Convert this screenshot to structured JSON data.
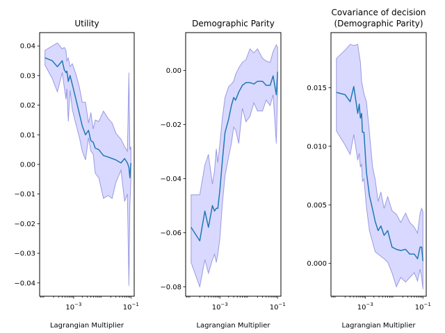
{
  "chart_data": [
    {
      "type": "line",
      "title": "Utility",
      "xlabel": "Lagrangian Multiplier",
      "xscale": "log",
      "xlim": [
        6.5e-05,
        0.13
      ],
      "ylim": [
        -0.0445,
        0.0445
      ],
      "xticks": [
        {
          "value": 0.001,
          "base": "10",
          "exp": "−3"
        },
        {
          "value": 0.1,
          "base": "10",
          "exp": "−1"
        }
      ],
      "yticks": [
        {
          "value": 0.04,
          "label": "0.04"
        },
        {
          "value": 0.03,
          "label": "0.03"
        },
        {
          "value": 0.02,
          "label": "0.02"
        },
        {
          "value": 0.01,
          "label": "0.01"
        },
        {
          "value": 0.0,
          "label": "0.00"
        },
        {
          "value": -0.01,
          "label": "−0.01"
        },
        {
          "value": -0.02,
          "label": "−0.02"
        },
        {
          "value": -0.03,
          "label": "−0.03"
        },
        {
          "value": -0.04,
          "label": "−0.04"
        }
      ],
      "series": [
        {
          "x": [
            0.0001,
            0.00018,
            0.00027,
            0.0004,
            0.00047,
            0.00054,
            0.00058,
            0.00065,
            0.00075,
            0.0009,
            0.0012,
            0.0016,
            0.002,
            0.0026,
            0.0033,
            0.004,
            0.0048,
            0.0057,
            0.0075,
            0.011,
            0.016,
            0.022,
            0.03,
            0.045,
            0.06,
            0.075,
            0.085,
            0.092,
            0.1
          ],
          "y": [
            0.036,
            0.035,
            0.033,
            0.035,
            0.032,
            0.031,
            0.0315,
            0.028,
            0.03,
            0.027,
            0.022,
            0.017,
            0.013,
            0.01,
            0.0115,
            0.008,
            0.0075,
            0.0055,
            0.005,
            0.003,
            0.0025,
            0.002,
            0.0015,
            0.0005,
            0.002,
            0.0005,
            -0.001,
            -0.0045,
            0.0005
          ],
          "upper": [
            0.0385,
            0.04,
            0.041,
            0.039,
            0.0395,
            0.0385,
            0.035,
            0.036,
            0.033,
            0.034,
            0.0305,
            0.026,
            0.021,
            0.021,
            0.014,
            0.0175,
            0.012,
            0.015,
            0.0145,
            0.018,
            0.0155,
            0.014,
            0.0105,
            0.0085,
            0.006,
            0.0045,
            0.031,
            0.005,
            0.006
          ],
          "lower": [
            0.0335,
            0.029,
            0.0245,
            0.031,
            0.026,
            0.022,
            0.0255,
            0.0145,
            0.025,
            0.0185,
            0.0135,
            0.009,
            0.0045,
            0.0015,
            0.009,
            0.0045,
            0.0035,
            -0.003,
            -0.0045,
            -0.0115,
            -0.0105,
            -0.0115,
            -0.006,
            -0.002,
            -0.0125,
            -0.01,
            -0.041,
            -0.014,
            -0.005
          ]
        }
      ]
    },
    {
      "type": "line",
      "title": "Demographic Parity",
      "xlabel": "Lagrangian Multiplier",
      "xscale": "log",
      "xlim": [
        6.5e-05,
        0.13
      ],
      "ylim": [
        -0.0835,
        0.014
      ],
      "xticks": [
        {
          "value": 0.001,
          "base": "10",
          "exp": "−3"
        },
        {
          "value": 0.1,
          "base": "10",
          "exp": "−1"
        }
      ],
      "yticks": [
        {
          "value": 0.0,
          "label": "0.00"
        },
        {
          "value": -0.02,
          "label": "−0.02"
        },
        {
          "value": -0.04,
          "label": "−0.04"
        },
        {
          "value": -0.06,
          "label": "−0.06"
        },
        {
          "value": -0.08,
          "label": "−0.08"
        }
      ],
      "series": [
        {
          "x": [
            0.0001,
            0.0002,
            0.0003,
            0.0004,
            0.00055,
            0.00065,
            0.00075,
            0.00085,
            0.001,
            0.0012,
            0.0015,
            0.002,
            0.0025,
            0.003,
            0.0035,
            0.0045,
            0.006,
            0.008,
            0.011,
            0.015,
            0.02,
            0.03,
            0.04,
            0.055,
            0.07,
            0.09,
            0.1
          ],
          "y": [
            -0.058,
            -0.063,
            -0.052,
            -0.058,
            -0.05,
            -0.052,
            -0.051,
            -0.051,
            -0.044,
            -0.034,
            -0.023,
            -0.018,
            -0.013,
            -0.01,
            -0.011,
            -0.008,
            -0.0055,
            -0.0045,
            -0.0045,
            -0.005,
            -0.004,
            -0.004,
            -0.0055,
            -0.0055,
            -0.002,
            -0.009,
            -0.0005
          ],
          "upper": [
            -0.046,
            -0.046,
            -0.035,
            -0.031,
            -0.042,
            -0.037,
            -0.029,
            -0.034,
            -0.027,
            -0.018,
            -0.01,
            -0.006,
            -0.005,
            -0.004,
            -0.0015,
            0.001,
            0.003,
            0.004,
            0.008,
            0.0065,
            0.008,
            0.0045,
            0.0035,
            0.003,
            0.007,
            0.0095,
            0.0085
          ],
          "lower": [
            -0.071,
            -0.08,
            -0.07,
            -0.075,
            -0.07,
            -0.068,
            -0.071,
            -0.068,
            -0.062,
            -0.05,
            -0.039,
            -0.032,
            -0.027,
            -0.021,
            -0.022,
            -0.027,
            -0.014,
            -0.019,
            -0.017,
            -0.012,
            -0.015,
            -0.015,
            -0.011,
            -0.013,
            -0.009,
            -0.027,
            -0.0085
          ]
        }
      ]
    },
    {
      "type": "line",
      "title": "Covariance of decision\n(Demographic Parity)",
      "xlabel": "Lagrangian Multiplier",
      "xscale": "log",
      "xlim": [
        6.5e-05,
        0.13
      ],
      "ylim": [
        -0.0028,
        0.0197
      ],
      "xticks": [
        {
          "value": 0.001,
          "base": "10",
          "exp": "−3"
        },
        {
          "value": 0.1,
          "base": "10",
          "exp": "−1"
        }
      ],
      "yticks": [
        {
          "value": 0.015,
          "label": "0.015"
        },
        {
          "value": 0.01,
          "label": "0.010"
        },
        {
          "value": 0.005,
          "label": "0.005"
        },
        {
          "value": 0.0,
          "label": "0.000"
        }
      ],
      "series": [
        {
          "x": [
            0.0001,
            0.0002,
            0.0003,
            0.0004,
            0.00055,
            0.00062,
            0.00068,
            0.00075,
            0.0008,
            0.0009,
            0.0011,
            0.0014,
            0.0018,
            0.0022,
            0.0028,
            0.0035,
            0.0045,
            0.006,
            0.0085,
            0.012,
            0.017,
            0.025,
            0.035,
            0.05,
            0.065,
            0.08,
            0.09,
            0.1
          ],
          "y": [
            0.0146,
            0.0144,
            0.0138,
            0.0151,
            0.0128,
            0.0136,
            0.0124,
            0.0128,
            0.0112,
            0.0112,
            0.0078,
            0.0058,
            0.0046,
            0.0036,
            0.0028,
            0.0032,
            0.0024,
            0.0028,
            0.0014,
            0.0012,
            0.0011,
            0.0012,
            0.0008,
            0.0008,
            0.0004,
            0.0014,
            0.0014,
            0.0002
          ],
          "upper": [
            0.0175,
            0.0182,
            0.0187,
            0.0186,
            0.0187,
            0.0178,
            0.0172,
            0.0155,
            0.0152,
            0.0145,
            0.0138,
            0.0112,
            0.0082,
            0.0072,
            0.0053,
            0.0061,
            0.0047,
            0.0057,
            0.0045,
            0.0042,
            0.0035,
            0.0043,
            0.0035,
            0.0031,
            0.0026,
            0.0043,
            0.0047,
            0.0044
          ],
          "lower": [
            0.0113,
            0.0101,
            0.0093,
            0.011,
            0.0088,
            0.0094,
            0.0082,
            0.0085,
            0.007,
            0.0072,
            0.0048,
            0.0028,
            0.0018,
            0.001,
            0.0008,
            0.0006,
            0.0004,
            0.0001,
            -0.0008,
            -0.002,
            -0.0012,
            -0.0016,
            -0.0012,
            -0.0008,
            -0.0015,
            -0.0005,
            -0.0012,
            -0.0022
          ]
        }
      ]
    }
  ]
}
